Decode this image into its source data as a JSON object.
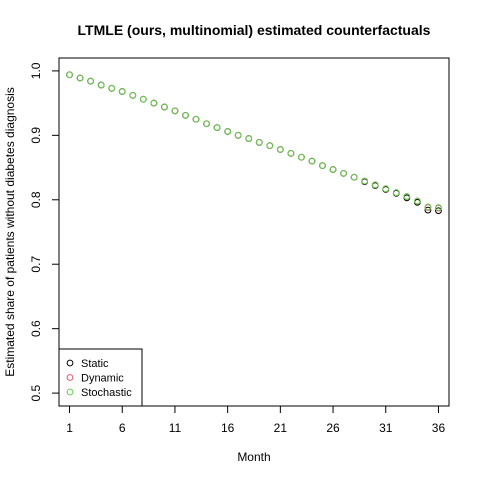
{
  "chart_data": {
    "type": "scatter",
    "title": "LTMLE (ours, multinomial) estimated counterfactuals",
    "xlabel": "Month",
    "ylabel": "Estimated share of patients without diabetes diagnosis",
    "xlim": [
      0,
      37
    ],
    "ylim": [
      0.48,
      1.02
    ],
    "xticks": [
      1,
      6,
      11,
      16,
      21,
      26,
      31,
      36
    ],
    "yticks": [
      0.5,
      0.6,
      0.7,
      0.8,
      0.9,
      1.0
    ],
    "ytick_labels": [
      "0.5",
      "0.6",
      "0.7",
      "0.8",
      "0.9",
      "1.0"
    ],
    "legend_position": "bottom-left",
    "x": [
      1,
      2,
      3,
      4,
      5,
      6,
      7,
      8,
      9,
      10,
      11,
      12,
      13,
      14,
      15,
      16,
      17,
      18,
      19,
      20,
      21,
      22,
      23,
      24,
      25,
      26,
      27,
      28,
      29,
      30,
      31,
      32,
      33,
      34,
      35,
      36
    ],
    "series": [
      {
        "name": "Static",
        "color": "#000000",
        "values": [
          0.994,
          0.989,
          0.984,
          0.978,
          0.973,
          0.968,
          0.962,
          0.956,
          0.95,
          0.944,
          0.938,
          0.931,
          0.925,
          0.918,
          0.912,
          0.906,
          0.9,
          0.895,
          0.889,
          0.884,
          0.878,
          0.872,
          0.866,
          0.86,
          0.853,
          0.847,
          0.841,
          0.835,
          0.828,
          0.822,
          0.816,
          0.81,
          0.803,
          0.796,
          0.784,
          0.783
        ]
      },
      {
        "name": "Dynamic",
        "color": "#DF536B",
        "values": [
          0.994,
          0.989,
          0.984,
          0.978,
          0.973,
          0.968,
          0.962,
          0.956,
          0.95,
          0.944,
          0.938,
          0.931,
          0.925,
          0.918,
          0.912,
          0.906,
          0.9,
          0.895,
          0.889,
          0.884,
          0.878,
          0.872,
          0.866,
          0.86,
          0.853,
          0.847,
          0.841,
          0.835,
          0.829,
          0.823,
          0.817,
          0.811,
          0.805,
          0.798,
          0.788,
          0.787
        ]
      },
      {
        "name": "Stochastic",
        "color": "#61D04F",
        "values": [
          0.994,
          0.989,
          0.984,
          0.978,
          0.973,
          0.968,
          0.962,
          0.956,
          0.95,
          0.944,
          0.938,
          0.931,
          0.925,
          0.918,
          0.912,
          0.906,
          0.9,
          0.895,
          0.889,
          0.884,
          0.878,
          0.872,
          0.866,
          0.86,
          0.853,
          0.847,
          0.841,
          0.835,
          0.829,
          0.823,
          0.817,
          0.811,
          0.805,
          0.798,
          0.789,
          0.788
        ]
      }
    ]
  }
}
